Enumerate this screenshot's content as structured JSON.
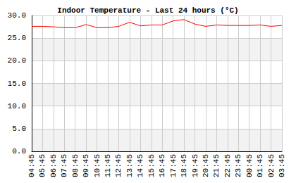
{
  "chart_data": {
    "type": "line",
    "title": "Indoor Temperature - Last 24 hours (°C)",
    "categories": [
      "04:45",
      "05:45",
      "06:45",
      "07:45",
      "08:45",
      "09:45",
      "10:45",
      "11:45",
      "12:45",
      "13:45",
      "14:45",
      "15:45",
      "16:45",
      "17:45",
      "18:45",
      "19:45",
      "20:45",
      "21:45",
      "22:45",
      "23:45",
      "00:45",
      "01:45",
      "02:45",
      "03:45"
    ],
    "values": [
      27.6,
      27.6,
      27.5,
      27.3,
      27.3,
      28.0,
      27.3,
      27.3,
      27.6,
      28.5,
      27.7,
      27.9,
      27.9,
      28.8,
      29.1,
      28.1,
      27.6,
      27.9,
      27.8,
      27.8,
      27.8,
      27.9,
      27.6,
      27.8
    ],
    "color": "#ff0000",
    "ylim": [
      0,
      30
    ],
    "yticks": [
      {
        "value": 0,
        "label": "0.0"
      },
      {
        "value": 5,
        "label": "5.0"
      },
      {
        "value": 10,
        "label": "10.0"
      },
      {
        "value": 15,
        "label": "15.0"
      },
      {
        "value": 20,
        "label": "20.0"
      },
      {
        "value": 25,
        "label": "25.0"
      },
      {
        "value": 30,
        "label": "30.0"
      }
    ],
    "grid": true
  }
}
